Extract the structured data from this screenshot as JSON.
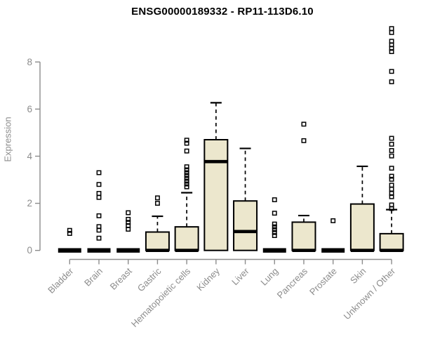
{
  "header": {
    "title": "ENSG00000189332 - RP11-113D6.10"
  },
  "chart_data": {
    "type": "boxplot",
    "title": "ENSG00000189332 - RP11-113D6.10",
    "xlabel": "",
    "ylabel": "Expression",
    "ylim": [
      0,
      9.6
    ],
    "yticks": [
      0,
      2,
      4,
      6,
      8
    ],
    "grid": false,
    "legend": "none",
    "outlier_marker": "open-square",
    "colors": {
      "box_fill": "#ece7cd",
      "box_stroke": "#000000",
      "median": "#000000",
      "whisker": "#000000",
      "axis": "#8c8c8c",
      "title": "#000000",
      "background": "#ffffff"
    },
    "categories": [
      "Bladder",
      "Brain",
      "Breast",
      "Gastric",
      "Hematopoietic cells",
      "Kidney",
      "Liver",
      "Lung",
      "Pancreas",
      "Prostate",
      "Skin",
      "Unknown / Other"
    ],
    "series": [
      {
        "name": "Bladder",
        "q1": 0,
        "median": 0,
        "q3": 0,
        "whisker_low": 0,
        "whisker_high": 0,
        "outliers": [
          0.72,
          0.85
        ]
      },
      {
        "name": "Brain",
        "q1": 0,
        "median": 0,
        "q3": 0,
        "whisker_low": 0,
        "whisker_high": 0,
        "outliers": [
          3.3,
          2.8,
          2.42,
          2.25,
          1.47,
          1.01,
          0.86,
          0.52
        ]
      },
      {
        "name": "Breast",
        "q1": 0,
        "median": 0,
        "q3": 0,
        "whisker_low": 0,
        "whisker_high": 0,
        "outliers": [
          1.6,
          1.32,
          1.19,
          1.05,
          0.9
        ]
      },
      {
        "name": "Gastric",
        "q1": 0,
        "median": 0,
        "q3": 0.78,
        "whisker_low": 0,
        "whisker_high": 1.45,
        "outliers": [
          2.23,
          2.0
        ]
      },
      {
        "name": "Hematopoietic cells",
        "q1": 0,
        "median": 0,
        "q3": 1.0,
        "whisker_low": 0,
        "whisker_high": 2.45,
        "outliers": [
          4.68,
          4.55,
          4.22,
          3.55,
          3.42,
          3.3,
          3.18,
          3.06,
          2.94,
          2.82,
          2.7
        ]
      },
      {
        "name": "Kidney",
        "q1": 0,
        "median": 3.77,
        "q3": 4.7,
        "whisker_low": 0,
        "whisker_high": 6.27,
        "outliers": []
      },
      {
        "name": "Liver",
        "q1": 0,
        "median": 0.8,
        "q3": 2.1,
        "whisker_low": 0,
        "whisker_high": 4.33,
        "outliers": []
      },
      {
        "name": "Lung",
        "q1": 0,
        "median": 0,
        "q3": 0,
        "whisker_low": 0,
        "whisker_high": 0,
        "outliers": [
          2.15,
          1.58,
          1.12,
          1.0,
          0.88,
          0.76,
          0.63
        ]
      },
      {
        "name": "Pancreas",
        "q1": 0,
        "median": 0,
        "q3": 1.2,
        "whisker_low": 0,
        "whisker_high": 1.48,
        "outliers": [
          5.36,
          4.66
        ]
      },
      {
        "name": "Prostate",
        "q1": 0,
        "median": 0,
        "q3": 0,
        "whisker_low": 0,
        "whisker_high": 0,
        "outliers": [
          1.26
        ]
      },
      {
        "name": "Skin",
        "q1": 0,
        "median": 0,
        "q3": 1.97,
        "whisker_low": 0,
        "whisker_high": 3.57,
        "outliers": []
      },
      {
        "name": "Unknown / Other",
        "q1": 0,
        "median": 0,
        "q3": 0.71,
        "whisker_low": 0,
        "whisker_high": 1.73,
        "outliers": [
          9.42,
          9.25,
          8.88,
          8.73,
          8.58,
          8.44,
          7.6,
          7.16,
          4.76,
          4.51,
          4.24,
          4.01,
          3.49,
          3.15,
          3.02,
          2.77,
          2.6,
          2.42,
          2.28,
          1.93,
          1.78
        ]
      }
    ]
  }
}
